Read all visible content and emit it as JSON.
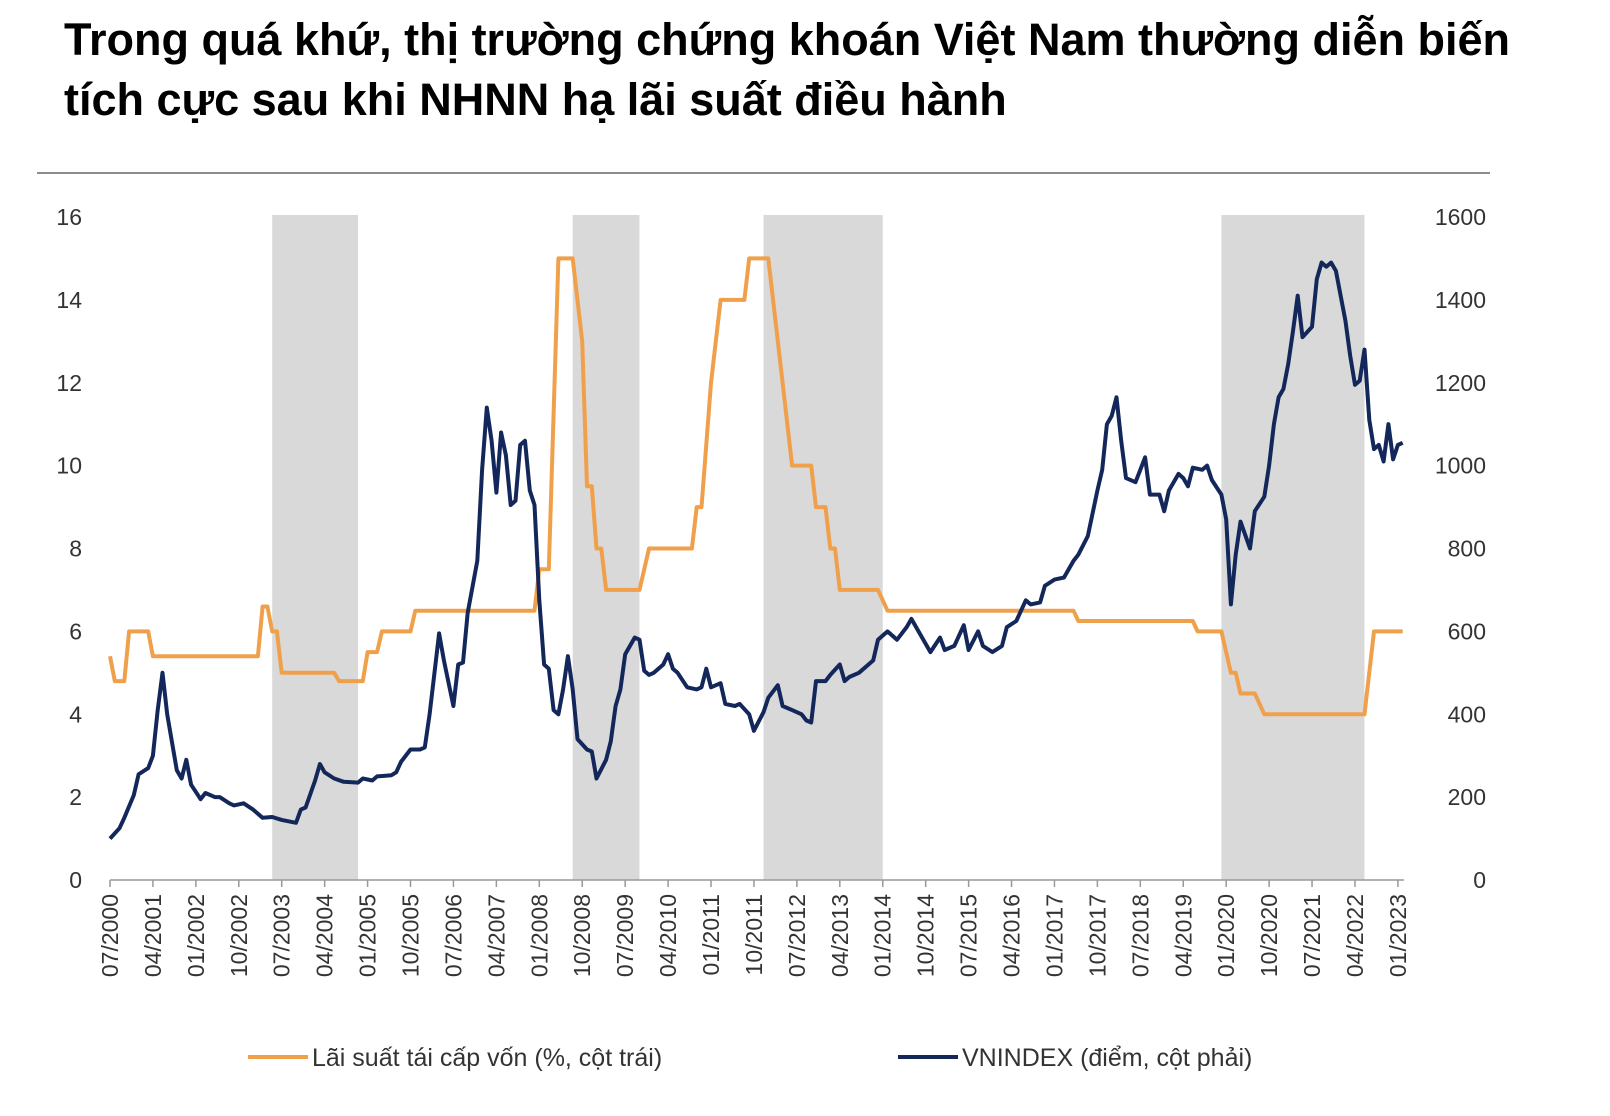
{
  "chart_data": {
    "type": "line",
    "title": "Trong quá khứ, thị trường chứng khoán Việt Nam thường diễn biến tích cực sau khi NHNN hạ lãi suất điều hành",
    "colors": {
      "rate": "#F0A04B",
      "vnindex": "#13275A",
      "shading": "#D9D9D9",
      "rule": "#8C8C8C"
    },
    "y_left": {
      "range": [
        0,
        16
      ],
      "ticks": [
        "0",
        "2",
        "4",
        "6",
        "8",
        "10",
        "12",
        "14",
        "16"
      ]
    },
    "y_right": {
      "range": [
        0,
        1600
      ],
      "ticks": [
        "0",
        "200",
        "400",
        "600",
        "800",
        "1000",
        "1200",
        "1400",
        "1600"
      ]
    },
    "x_ticks": [
      "07/2000",
      "04/2001",
      "01/2002",
      "10/2002",
      "07/2003",
      "04/2004",
      "01/2005",
      "10/2005",
      "07/2006",
      "04/2007",
      "01/2008",
      "10/2008",
      "07/2009",
      "04/2010",
      "01/2011",
      "10/2011",
      "07/2012",
      "04/2013",
      "01/2014",
      "10/2014",
      "07/2015",
      "04/2016",
      "01/2017",
      "10/2017",
      "07/2018",
      "04/2019",
      "01/2020",
      "10/2020",
      "07/2021",
      "04/2022",
      "01/2023"
    ],
    "grid": false,
    "legend_placement": "bottom",
    "shaded_periods": [
      [
        "05/2003",
        "11/2004"
      ],
      [
        "08/2008",
        "10/2009"
      ],
      [
        "12/2011",
        "01/2014"
      ],
      [
        "12/2019",
        "06/2022"
      ]
    ],
    "series": [
      {
        "name": "Lãi suất tái cấp vốn (%, cột trái)",
        "axis": "left",
        "step": true,
        "points": [
          [
            "07/2000",
            5.4
          ],
          [
            "08/2000",
            4.8
          ],
          [
            "10/2000",
            4.8
          ],
          [
            "11/2000",
            6.0
          ],
          [
            "03/2001",
            6.0
          ],
          [
            "04/2001",
            5.4
          ],
          [
            "02/2003",
            5.4
          ],
          [
            "03/2003",
            6.6
          ],
          [
            "04/2003",
            6.6
          ],
          [
            "05/2003",
            6.0
          ],
          [
            "06/2003",
            6.0
          ],
          [
            "07/2003",
            5.0
          ],
          [
            "06/2004",
            5.0
          ],
          [
            "07/2004",
            4.8
          ],
          [
            "12/2004",
            4.8
          ],
          [
            "01/2005",
            5.5
          ],
          [
            "03/2005",
            5.5
          ],
          [
            "04/2005",
            6.0
          ],
          [
            "10/2005",
            6.0
          ],
          [
            "11/2005",
            6.5
          ],
          [
            "12/2007",
            6.5
          ],
          [
            "01/2008",
            7.5
          ],
          [
            "03/2008",
            7.5
          ],
          [
            "05/2008",
            15
          ],
          [
            "08/2008",
            15
          ],
          [
            "10/2008",
            13
          ],
          [
            "11/2008",
            9.5
          ],
          [
            "12/2008",
            9.5
          ],
          [
            "01/2009",
            8
          ],
          [
            "02/2009",
            8
          ],
          [
            "03/2009",
            7
          ],
          [
            "10/2009",
            7
          ],
          [
            "12/2009",
            8
          ],
          [
            "09/2010",
            8
          ],
          [
            "10/2010",
            9
          ],
          [
            "11/2010",
            9
          ],
          [
            "01/2011",
            12
          ],
          [
            "03/2011",
            14
          ],
          [
            "08/2011",
            14
          ],
          [
            "09/2011",
            15
          ],
          [
            "01/2012",
            15
          ],
          [
            "04/2012",
            12
          ],
          [
            "06/2012",
            10
          ],
          [
            "10/2012",
            10
          ],
          [
            "11/2012",
            9
          ],
          [
            "01/2013",
            9
          ],
          [
            "02/2013",
            8
          ],
          [
            "03/2013",
            8
          ],
          [
            "04/2013",
            7
          ],
          [
            "12/2013",
            7
          ],
          [
            "02/2014",
            6.5
          ],
          [
            "05/2017",
            6.5
          ],
          [
            "06/2017",
            6.25
          ],
          [
            "06/2019",
            6.25
          ],
          [
            "07/2019",
            6.0
          ],
          [
            "12/2019",
            6.0
          ],
          [
            "02/2020",
            5.0
          ],
          [
            "03/2020",
            5.0
          ],
          [
            "04/2020",
            4.5
          ],
          [
            "07/2020",
            4.5
          ],
          [
            "09/2020",
            4.0
          ],
          [
            "06/2022",
            4.0
          ],
          [
            "08/2022",
            6.0
          ],
          [
            "02/2023",
            6.0
          ]
        ]
      },
      {
        "name": "VNINDEX (điểm, cột phải)",
        "axis": "right",
        "step": false,
        "points": [
          [
            "07/2000",
            100
          ],
          [
            "09/2000",
            125
          ],
          [
            "10/2000",
            150
          ],
          [
            "12/2000",
            205
          ],
          [
            "01/2001",
            255
          ],
          [
            "03/2001",
            270
          ],
          [
            "04/2001",
            300
          ],
          [
            "05/2001",
            410
          ],
          [
            "06/2001",
            500
          ],
          [
            "07/2001",
            400
          ],
          [
            "09/2001",
            265
          ],
          [
            "10/2001",
            245
          ],
          [
            "11/2001",
            290
          ],
          [
            "12/2001",
            230
          ],
          [
            "02/2002",
            195
          ],
          [
            "03/2002",
            210
          ],
          [
            "05/2002",
            200
          ],
          [
            "06/2002",
            200
          ],
          [
            "08/2002",
            185
          ],
          [
            "09/2002",
            180
          ],
          [
            "11/2002",
            185
          ],
          [
            "01/2003",
            170
          ],
          [
            "03/2003",
            150
          ],
          [
            "05/2003",
            152
          ],
          [
            "07/2003",
            145
          ],
          [
            "10/2003",
            138
          ],
          [
            "11/2003",
            170
          ],
          [
            "12/2003",
            175
          ],
          [
            "02/2004",
            240
          ],
          [
            "03/2004",
            280
          ],
          [
            "04/2004",
            260
          ],
          [
            "06/2004",
            245
          ],
          [
            "08/2004",
            237
          ],
          [
            "11/2004",
            235
          ],
          [
            "12/2004",
            245
          ],
          [
            "02/2005",
            240
          ],
          [
            "03/2005",
            250
          ],
          [
            "06/2005",
            253
          ],
          [
            "07/2005",
            260
          ],
          [
            "08/2005",
            285
          ],
          [
            "10/2005",
            315
          ],
          [
            "12/2005",
            315
          ],
          [
            "01/2006",
            320
          ],
          [
            "02/2006",
            400
          ],
          [
            "04/2006",
            595
          ],
          [
            "05/2006",
            530
          ],
          [
            "07/2006",
            420
          ],
          [
            "08/2006",
            520
          ],
          [
            "09/2006",
            525
          ],
          [
            "10/2006",
            645
          ],
          [
            "12/2006",
            770
          ],
          [
            "01/2007",
            990
          ],
          [
            "02/2007",
            1140
          ],
          [
            "03/2007",
            1060
          ],
          [
            "04/2007",
            935
          ],
          [
            "05/2007",
            1080
          ],
          [
            "06/2007",
            1025
          ],
          [
            "07/2007",
            905
          ],
          [
            "08/2007",
            915
          ],
          [
            "09/2007",
            1050
          ],
          [
            "10/2007",
            1060
          ],
          [
            "11/2007",
            940
          ],
          [
            "12/2007",
            905
          ],
          [
            "01/2008",
            675
          ],
          [
            "02/2008",
            520
          ],
          [
            "03/2008",
            510
          ],
          [
            "04/2008",
            410
          ],
          [
            "05/2008",
            400
          ],
          [
            "06/2008",
            460
          ],
          [
            "07/2008",
            540
          ],
          [
            "08/2008",
            460
          ],
          [
            "09/2008",
            340
          ],
          [
            "11/2008",
            315
          ],
          [
            "12/2008",
            310
          ],
          [
            "01/2009",
            245
          ],
          [
            "03/2009",
            290
          ],
          [
            "04/2009",
            335
          ],
          [
            "05/2009",
            420
          ],
          [
            "06/2009",
            460
          ],
          [
            "07/2009",
            545
          ],
          [
            "09/2009",
            585
          ],
          [
            "10/2009",
            580
          ],
          [
            "11/2009",
            505
          ],
          [
            "12/2009",
            495
          ],
          [
            "01/2010",
            500
          ],
          [
            "03/2010",
            520
          ],
          [
            "04/2010",
            545
          ],
          [
            "05/2010",
            510
          ],
          [
            "06/2010",
            500
          ],
          [
            "08/2010",
            465
          ],
          [
            "10/2010",
            460
          ],
          [
            "11/2010",
            465
          ],
          [
            "12/2010",
            510
          ],
          [
            "01/2011",
            465
          ],
          [
            "03/2011",
            475
          ],
          [
            "04/2011",
            425
          ],
          [
            "06/2011",
            420
          ],
          [
            "07/2011",
            425
          ],
          [
            "09/2011",
            400
          ],
          [
            "10/2011",
            360
          ],
          [
            "12/2011",
            405
          ],
          [
            "01/2012",
            440
          ],
          [
            "03/2012",
            470
          ],
          [
            "04/2012",
            420
          ],
          [
            "06/2012",
            410
          ],
          [
            "08/2012",
            400
          ],
          [
            "09/2012",
            385
          ],
          [
            "10/2012",
            380
          ],
          [
            "11/2012",
            480
          ],
          [
            "01/2013",
            480
          ],
          [
            "02/2013",
            495
          ],
          [
            "04/2013",
            520
          ],
          [
            "05/2013",
            480
          ],
          [
            "06/2013",
            490
          ],
          [
            "08/2013",
            500
          ],
          [
            "09/2013",
            510
          ],
          [
            "11/2013",
            530
          ],
          [
            "12/2013",
            580
          ],
          [
            "02/2014",
            600
          ],
          [
            "04/2014",
            580
          ],
          [
            "06/2014",
            610
          ],
          [
            "07/2014",
            630
          ],
          [
            "09/2014",
            590
          ],
          [
            "11/2014",
            550
          ],
          [
            "01/2015",
            585
          ],
          [
            "02/2015",
            555
          ],
          [
            "04/2015",
            565
          ],
          [
            "06/2015",
            615
          ],
          [
            "07/2015",
            555
          ],
          [
            "09/2015",
            600
          ],
          [
            "10/2015",
            565
          ],
          [
            "12/2015",
            550
          ],
          [
            "02/2016",
            565
          ],
          [
            "03/2016",
            610
          ],
          [
            "05/2016",
            625
          ],
          [
            "07/2016",
            675
          ],
          [
            "08/2016",
            665
          ],
          [
            "10/2016",
            670
          ],
          [
            "11/2016",
            710
          ],
          [
            "01/2017",
            725
          ],
          [
            "03/2017",
            730
          ],
          [
            "05/2017",
            770
          ],
          [
            "06/2017",
            785
          ],
          [
            "08/2017",
            830
          ],
          [
            "10/2017",
            940
          ],
          [
            "11/2017",
            990
          ],
          [
            "12/2017",
            1100
          ],
          [
            "01/2018",
            1120
          ],
          [
            "02/2018",
            1165
          ],
          [
            "03/2018",
            1060
          ],
          [
            "04/2018",
            970
          ],
          [
            "06/2018",
            960
          ],
          [
            "07/2018",
            990
          ],
          [
            "08/2018",
            1020
          ],
          [
            "09/2018",
            930
          ],
          [
            "11/2018",
            930
          ],
          [
            "12/2018",
            890
          ],
          [
            "01/2019",
            940
          ],
          [
            "03/2019",
            980
          ],
          [
            "04/2019",
            970
          ],
          [
            "05/2019",
            950
          ],
          [
            "06/2019",
            995
          ],
          [
            "08/2019",
            990
          ],
          [
            "09/2019",
            1000
          ],
          [
            "10/2019",
            965
          ],
          [
            "12/2019",
            930
          ],
          [
            "01/2020",
            870
          ],
          [
            "02/2020",
            665
          ],
          [
            "03/2020",
            785
          ],
          [
            "04/2020",
            865
          ],
          [
            "06/2020",
            800
          ],
          [
            "07/2020",
            890
          ],
          [
            "09/2020",
            925
          ],
          [
            "10/2020",
            1000
          ],
          [
            "11/2020",
            1100
          ],
          [
            "12/2020",
            1165
          ],
          [
            "01/2021",
            1185
          ],
          [
            "02/2021",
            1245
          ],
          [
            "03/2021",
            1325
          ],
          [
            "04/2021",
            1410
          ],
          [
            "05/2021",
            1310
          ],
          [
            "07/2021",
            1335
          ],
          [
            "08/2021",
            1450
          ],
          [
            "09/2021",
            1490
          ],
          [
            "10/2021",
            1480
          ],
          [
            "11/2021",
            1490
          ],
          [
            "12/2021",
            1470
          ],
          [
            "02/2022",
            1350
          ],
          [
            "03/2022",
            1265
          ],
          [
            "04/2022",
            1195
          ],
          [
            "05/2022",
            1205
          ],
          [
            "06/2022",
            1280
          ],
          [
            "07/2022",
            1110
          ],
          [
            "08/2022",
            1040
          ],
          [
            "09/2022",
            1050
          ],
          [
            "10/2022",
            1010
          ],
          [
            "11/2022",
            1100
          ],
          [
            "12/2022",
            1015
          ],
          [
            "01/2023",
            1050
          ],
          [
            "02/2023",
            1055
          ]
        ]
      }
    ]
  }
}
